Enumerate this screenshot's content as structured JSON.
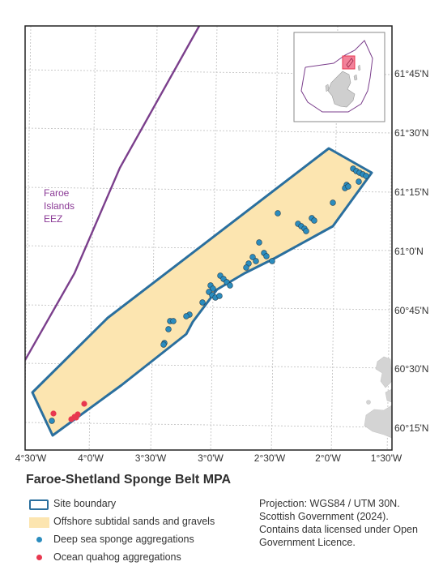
{
  "title": "Faroe-Shetland Sponge Belt MPA",
  "lon_labels": [
    "4°30'W",
    "4°0'W",
    "3°30'W",
    "3°0'W",
    "2°30'W",
    "2°0'W",
    "1°30'W"
  ],
  "lat_labels": [
    "61°45'N",
    "61°30'N",
    "61°15'N",
    "61°0'N",
    "60°45'N",
    "60°30'N",
    "60°15'N"
  ],
  "eez_label": [
    "Faroe",
    "Islands",
    "EEZ"
  ],
  "legend": {
    "boundary": "Site boundary",
    "sands": "Offshore subtidal sands and gravels",
    "sponge": "Deep sea sponge aggregations",
    "quahog": "Ocean quahog aggregations"
  },
  "credit": "Projection: WGS84 / UTM 30N. Scottish Government (2024). Contains data licensed under Open Government Licence.",
  "colors": {
    "boundary": "#2a6f9e",
    "sands": "#fce5b0",
    "sponge": "#2b8cbe",
    "quahog": "#e8384f",
    "eez": "#7b3f8c",
    "land": "#d4d4d4",
    "inset_highlight": "#f06b87"
  },
  "icons": {
    "sponge_marker": "circle-marker-icon",
    "quahog_marker": "circle-marker-icon"
  }
}
